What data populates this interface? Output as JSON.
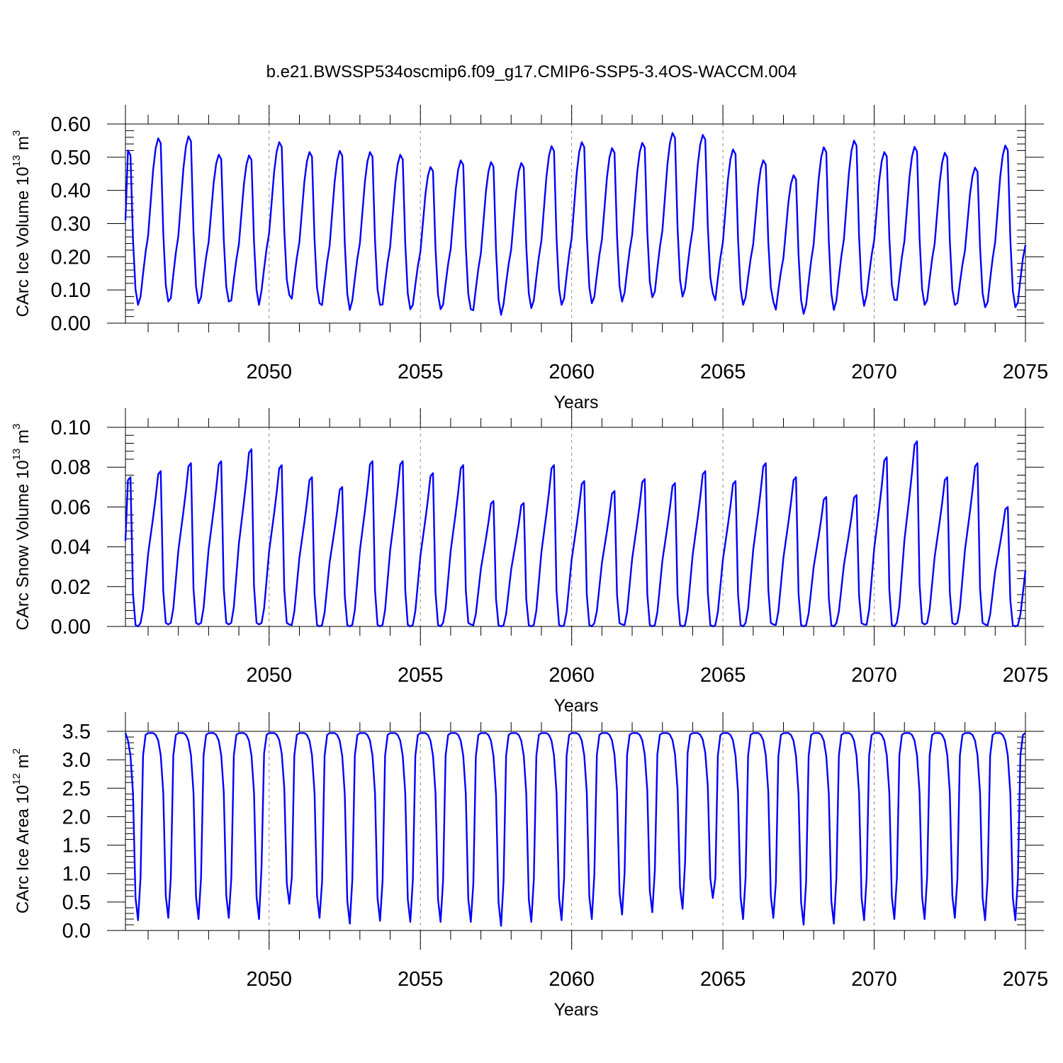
{
  "title": "b.e21.BWSSP534oscmip6.f09_g17.CMIP6-SSP5-3.4OS-WACCM.004",
  "chart_data": [
    {
      "type": "line",
      "id": "ice_volume",
      "ylabel_main": "CArc Ice Volume 10",
      "ylabel_exp": "13",
      "ylabel_unit": " m",
      "ylabel_unit_exp": "3",
      "xlabel": "Years",
      "xlim": [
        2045.25,
        2075.0
      ],
      "ylim": [
        0.0,
        0.6
      ],
      "x_major_ticks": [
        2050,
        2055,
        2060,
        2065,
        2070,
        2075
      ],
      "x_tick_labels": [
        "2050",
        "2055",
        "2060",
        "2065",
        "2070",
        "2075"
      ],
      "x_grid_dashed": [
        2050,
        2055,
        2060,
        2065,
        2070
      ],
      "y_major_ticks": [
        0.0,
        0.1,
        0.2,
        0.3,
        0.4,
        0.5,
        0.6
      ],
      "y_tick_labels": [
        "0.00",
        "0.10",
        "0.20",
        "0.30",
        "0.40",
        "0.50",
        "0.60"
      ],
      "y_minor_step": 0.02,
      "start_year": 2045.25,
      "n_months": 358,
      "color": "#0000ff",
      "annual_max": [
        0.525,
        0.562,
        0.568,
        0.512,
        0.51,
        0.55,
        0.52,
        0.524,
        0.52,
        0.512,
        0.475,
        0.495,
        0.49,
        0.487,
        0.538,
        0.55,
        0.532,
        0.548,
        0.578,
        0.572,
        0.528,
        0.495,
        0.45,
        0.535,
        0.555,
        0.52,
        0.536,
        0.518,
        0.473,
        0.54
      ],
      "annual_min": [
        0.055,
        0.065,
        0.06,
        0.065,
        0.055,
        0.085,
        0.06,
        0.04,
        0.055,
        0.042,
        0.042,
        0.042,
        0.025,
        0.045,
        0.055,
        0.06,
        0.065,
        0.078,
        0.08,
        0.09,
        0.055,
        0.065,
        0.028,
        0.04,
        0.052,
        0.07,
        0.055,
        0.055,
        0.048,
        0.048
      ],
      "start_value": 0.31,
      "end_value": 0.235
    },
    {
      "type": "line",
      "id": "snow_volume",
      "ylabel_main": "CArc Snow Volume 10",
      "ylabel_exp": "13",
      "ylabel_unit": " m",
      "ylabel_unit_exp": "3",
      "xlabel": "Years",
      "xlim": [
        2045.25,
        2075.0
      ],
      "ylim": [
        0.0,
        0.1
      ],
      "x_major_ticks": [
        2050,
        2055,
        2060,
        2065,
        2070,
        2075
      ],
      "x_tick_labels": [
        "2050",
        "2055",
        "2060",
        "2065",
        "2070",
        "2075"
      ],
      "x_grid_dashed": [
        2050,
        2055,
        2060,
        2065,
        2070
      ],
      "y_major_ticks": [
        0.0,
        0.02,
        0.04,
        0.06,
        0.08,
        0.1
      ],
      "y_tick_labels": [
        "0.00",
        "0.02",
        "0.04",
        "0.06",
        "0.08",
        "0.10"
      ],
      "y_minor_step": 0.004,
      "start_year": 2045.25,
      "n_months": 358,
      "color": "#0000ff",
      "annual_max": [
        0.075,
        0.078,
        0.082,
        0.083,
        0.089,
        0.081,
        0.075,
        0.07,
        0.083,
        0.083,
        0.077,
        0.081,
        0.063,
        0.062,
        0.081,
        0.073,
        0.068,
        0.074,
        0.072,
        0.078,
        0.073,
        0.082,
        0.075,
        0.065,
        0.066,
        0.085,
        0.093,
        0.075,
        0.082,
        0.06
      ],
      "annual_min": [
        0.0,
        0.001,
        0.001,
        0.001,
        0.001,
        0.001,
        0.0,
        0.0,
        0.0,
        0.0,
        0.0,
        0.001,
        0.0,
        0.0,
        0.0,
        0.0,
        0.001,
        0.0,
        0.0,
        0.0,
        0.0,
        0.001,
        0.0,
        0.0,
        0.001,
        0.0,
        0.001,
        0.001,
        0.001,
        0.0
      ],
      "start_value": 0.043,
      "end_value": 0.028
    },
    {
      "type": "line",
      "id": "ice_area",
      "ylabel_main": "CArc Ice Area 10",
      "ylabel_exp": "12",
      "ylabel_unit": " m",
      "ylabel_unit_exp": "2",
      "xlabel": "Years",
      "xlim": [
        2045.25,
        2075.0
      ],
      "ylim": [
        0.0,
        3.5
      ],
      "x_major_ticks": [
        2050,
        2055,
        2060,
        2065,
        2070,
        2075
      ],
      "x_tick_labels": [
        "2050",
        "2055",
        "2060",
        "2065",
        "2070",
        "2075"
      ],
      "x_grid_dashed": [
        2050,
        2055,
        2060,
        2065,
        2070
      ],
      "y_major_ticks": [
        0.0,
        0.5,
        1.0,
        1.5,
        2.0,
        2.5,
        3.0,
        3.5
      ],
      "y_tick_labels": [
        "0.0",
        "0.5",
        "1.0",
        "1.5",
        "2.0",
        "2.5",
        "3.0",
        "3.5"
      ],
      "y_minor_step": 0.1,
      "start_year": 2045.25,
      "n_months": 358,
      "color": "#0000ff",
      "annual_max": [
        3.47,
        3.47,
        3.47,
        3.47,
        3.47,
        3.47,
        3.47,
        3.47,
        3.47,
        3.47,
        3.47,
        3.47,
        3.47,
        3.47,
        3.47,
        3.47,
        3.47,
        3.47,
        3.47,
        3.47,
        3.47,
        3.47,
        3.47,
        3.47,
        3.47,
        3.47,
        3.47,
        3.47,
        3.47,
        3.47
      ],
      "annual_min": [
        0.18,
        0.22,
        0.2,
        0.22,
        0.2,
        0.47,
        0.22,
        0.12,
        0.17,
        0.15,
        0.15,
        0.15,
        0.08,
        0.15,
        0.18,
        0.2,
        0.28,
        0.32,
        0.38,
        0.57,
        0.2,
        0.22,
        0.1,
        0.12,
        0.18,
        0.2,
        0.2,
        0.22,
        0.18,
        0.18
      ],
      "start_value": 3.47,
      "end_value": 3.47
    }
  ]
}
